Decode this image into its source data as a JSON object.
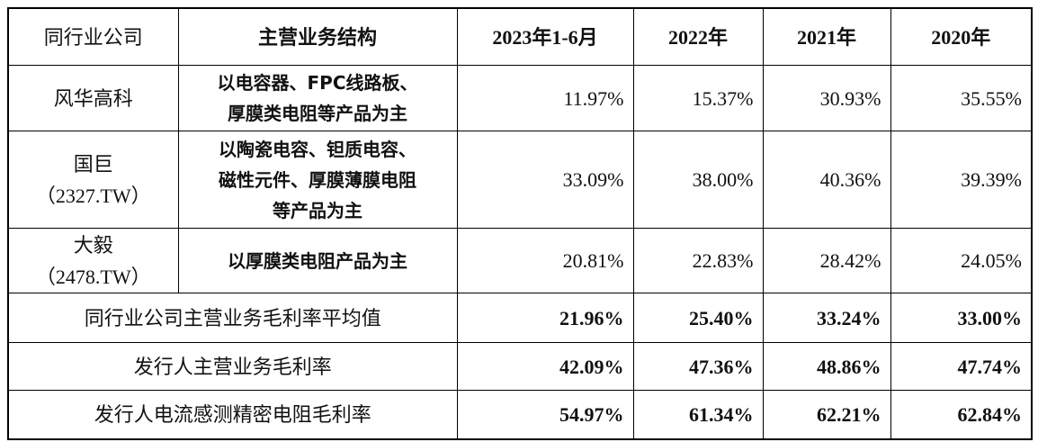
{
  "table": {
    "header": [
      "同行业公司",
      "主营业务结构",
      "2023年1-6月",
      "2022年",
      "2021年",
      "2020年"
    ],
    "rows": [
      {
        "company": [
          "风华高科"
        ],
        "business": [
          "以电容器、FPC线路板、",
          "厚膜类电阻等产品为主"
        ],
        "values": [
          "11.97%",
          "15.37%",
          "30.93%",
          "35.55%"
        ]
      },
      {
        "company": [
          "国巨",
          "（2327.TW）"
        ],
        "business": [
          "以陶瓷电容、钽质电容、",
          "磁性元件、厚膜薄膜电阻",
          "等产品为主"
        ],
        "values": [
          "33.09%",
          "38.00%",
          "40.36%",
          "39.39%"
        ]
      },
      {
        "company": [
          "大毅",
          "（2478.TW）"
        ],
        "business": [
          "以厚膜类电阻产品为主"
        ],
        "values": [
          "20.81%",
          "22.83%",
          "28.42%",
          "24.05%"
        ]
      }
    ],
    "summary": [
      {
        "label": "同行业公司主营业务毛利率平均值",
        "values": [
          "21.96%",
          "25.40%",
          "33.24%",
          "33.00%"
        ]
      },
      {
        "label": "发行人主营业务毛利率",
        "values": [
          "42.09%",
          "47.36%",
          "48.86%",
          "47.74%"
        ]
      },
      {
        "label": "发行人电流感测精密电阻毛利率",
        "values": [
          "54.97%",
          "61.34%",
          "62.21%",
          "62.84%"
        ]
      }
    ]
  }
}
